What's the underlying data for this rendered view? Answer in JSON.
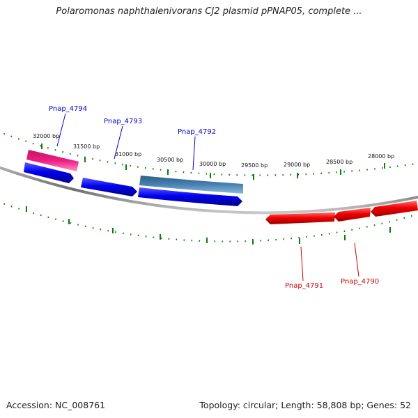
{
  "title": "Polaromonas naphthalenivorans CJ2 plasmid pPNAP05, complete ...",
  "footer": {
    "accession": "Accession: NC_008761",
    "summary": "Topology: circular; Length: 58,808 bp; Genes: 52"
  },
  "colors": {
    "backbone": "#808080",
    "tick": "#0a7d0a",
    "forward_gene": "#0000ee",
    "reverse_gene": "#ee0000",
    "highlight_pink": "#ee1c84",
    "highlight_steel": "#4682b4",
    "forward_label": "#0000cc",
    "reverse_label": "#cc0000"
  },
  "ticks": [
    {
      "bp": 32000,
      "label": "32000 bp"
    },
    {
      "bp": 31500,
      "label": "31500 bp"
    },
    {
      "bp": 31000,
      "label": "31000 bp"
    },
    {
      "bp": 30500,
      "label": "30500 bp"
    },
    {
      "bp": 30000,
      "label": "30000 bp"
    },
    {
      "bp": 29500,
      "label": "29500 bp"
    },
    {
      "bp": 29000,
      "label": "29000 bp"
    },
    {
      "bp": 28500,
      "label": "28500 bp"
    },
    {
      "bp": 28000,
      "label": "28000 bp"
    }
  ],
  "genes": [
    {
      "id": "Pnap_4794",
      "strand": "forward",
      "color": "highlight_pink",
      "labelled": true
    },
    {
      "id": "Pnap_4794_b",
      "strand": "forward",
      "color": "forward_gene",
      "labelled": false
    },
    {
      "id": "Pnap_4793",
      "strand": "forward",
      "color": "forward_gene",
      "labelled": true
    },
    {
      "id": "Pnap_4792",
      "strand": "forward",
      "color": "highlight_steel",
      "labelled": true
    },
    {
      "id": "Pnap_4792_b",
      "strand": "forward",
      "color": "forward_gene",
      "labelled": false
    },
    {
      "id": "Pnap_4791",
      "strand": "reverse",
      "color": "reverse_gene",
      "labelled": true
    },
    {
      "id": "Pnap_4790",
      "strand": "reverse",
      "color": "reverse_gene",
      "labelled": true
    },
    {
      "id": "Pnap_4790_b",
      "strand": "reverse",
      "color": "reverse_gene",
      "labelled": false
    }
  ],
  "labels": {
    "Pnap_4794": "Pnap_4794",
    "Pnap_4793": "Pnap_4793",
    "Pnap_4792": "Pnap_4792",
    "Pnap_4791": "Pnap_4791",
    "Pnap_4790": "Pnap_4790"
  }
}
